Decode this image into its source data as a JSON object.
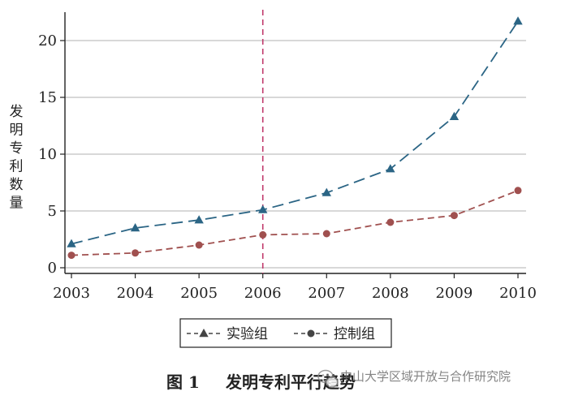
{
  "chart_data": {
    "type": "line",
    "title": "",
    "xlabel": "",
    "ylabel": "发明专利数量",
    "x": [
      "2003",
      "2004",
      "2005",
      "2006",
      "2007",
      "2008",
      "2009",
      "2010"
    ],
    "ylim": [
      -0.5,
      22.5
    ],
    "yticks": [
      0,
      5,
      10,
      15,
      20
    ],
    "grid": "horizontal",
    "reference_line": {
      "x": "2006",
      "style": "dashed",
      "color": "#c0396b"
    },
    "series": [
      {
        "name": "实验组",
        "marker": "triangle",
        "line_style": "long-dash",
        "color": "#2b6585",
        "values": [
          2.1,
          3.5,
          4.2,
          5.1,
          6.6,
          8.7,
          13.3,
          21.7
        ]
      },
      {
        "name": "控制组",
        "marker": "circle",
        "line_style": "dash",
        "color": "#a0504f",
        "values": [
          1.1,
          1.3,
          2.0,
          2.9,
          3.0,
          4.0,
          4.6,
          6.8
        ]
      }
    ],
    "legend": {
      "position": "bottom"
    }
  },
  "caption": {
    "number": "图 1",
    "title": "发明专利平行趋势"
  },
  "watermark": {
    "icon": "wechat-icon",
    "text": "中山大学区域开放与合作研究院"
  }
}
